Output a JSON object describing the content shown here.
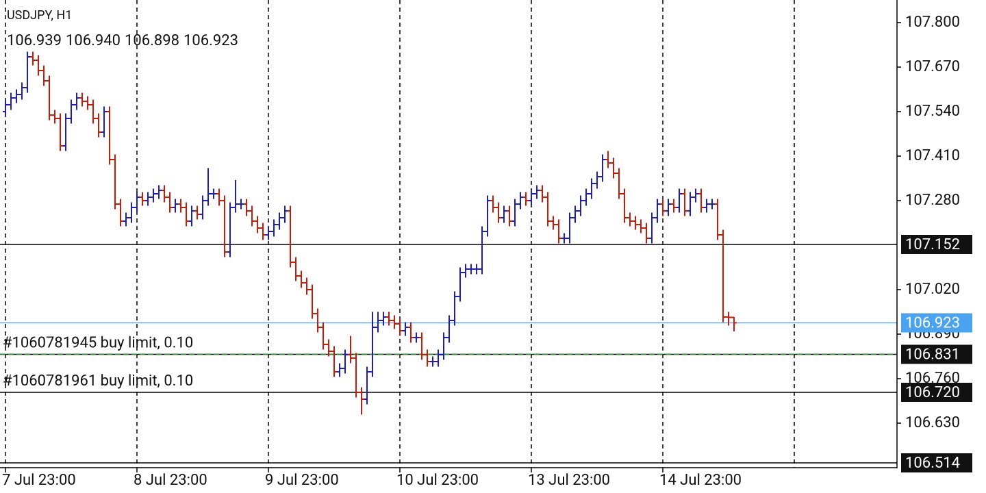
{
  "chart_data": {
    "type": "ohlc",
    "title": "USDJPY, H1",
    "last_bar_labels": [
      "106.939",
      "106.940",
      "106.898",
      "106.923"
    ],
    "categories": [
      "7 Jul 23:00",
      null,
      null,
      null,
      null,
      null,
      null,
      null,
      null,
      null,
      null,
      null,
      null,
      null,
      null,
      null,
      null,
      null,
      null,
      null,
      null,
      null,
      null,
      null,
      "8 Jul 23:00",
      null,
      null,
      null,
      null,
      null,
      null,
      null,
      null,
      null,
      null,
      null,
      null,
      null,
      null,
      null,
      null,
      null,
      null,
      null,
      null,
      null,
      null,
      null,
      "9 Jul 23:00",
      null,
      null,
      null,
      null,
      null,
      null,
      null,
      null,
      null,
      null,
      null,
      null,
      null,
      null,
      null,
      null,
      null,
      null,
      null,
      null,
      null,
      null,
      null,
      "10 Jul 23:00",
      null,
      null,
      null,
      null,
      null,
      null,
      null,
      null,
      null,
      null,
      null,
      null,
      null,
      null,
      null,
      null,
      null,
      null,
      null,
      null,
      null,
      null,
      null,
      "13 Jul 23:00",
      null,
      null,
      null,
      null,
      null,
      null,
      null,
      null,
      null,
      null,
      null,
      null,
      null,
      null,
      null,
      null,
      null,
      null,
      null,
      null,
      null,
      null,
      null,
      "14 Jul 23:00",
      null,
      null,
      null,
      null,
      null,
      null,
      null,
      null,
      null,
      null,
      null,
      null,
      null
    ],
    "open": [
      107.54,
      107.56,
      107.58,
      107.59,
      107.61,
      107.7,
      107.69,
      107.66,
      107.63,
      107.53,
      107.52,
      107.44,
      107.52,
      107.56,
      107.58,
      107.57,
      107.56,
      107.52,
      107.48,
      107.54,
      107.4,
      107.27,
      107.22,
      107.23,
      107.26,
      107.29,
      107.28,
      107.29,
      107.3,
      107.31,
      107.29,
      107.26,
      107.27,
      107.26,
      107.22,
      107.25,
      107.24,
      107.28,
      107.3,
      107.3,
      107.28,
      107.13,
      107.26,
      107.27,
      107.27,
      107.25,
      107.22,
      107.2,
      107.18,
      107.19,
      107.21,
      107.23,
      107.25,
      107.1,
      107.06,
      107.04,
      107.02,
      106.95,
      106.91,
      106.86,
      106.84,
      106.78,
      106.79,
      106.83,
      106.82,
      106.72,
      106.7,
      106.78,
      106.91,
      106.93,
      106.94,
      106.93,
      106.92,
      106.9,
      106.91,
      106.88,
      106.88,
      106.83,
      106.81,
      106.81,
      106.83,
      106.88,
      106.93,
      107.0,
      107.07,
      107.08,
      107.08,
      107.08,
      107.19,
      107.28,
      107.26,
      107.23,
      107.25,
      107.22,
      107.27,
      107.29,
      107.28,
      107.3,
      107.31,
      107.29,
      107.22,
      107.21,
      107.17,
      107.17,
      107.23,
      107.25,
      107.28,
      107.3,
      107.33,
      107.35,
      107.4,
      107.39,
      107.36,
      107.3,
      107.23,
      107.22,
      107.21,
      107.2,
      107.17,
      107.23,
      107.27,
      107.25,
      107.27,
      107.26,
      107.3,
      107.25,
      107.29,
      107.3,
      107.26,
      107.27,
      107.27,
      107.18,
      106.94,
      106.939
    ],
    "high": [
      107.575,
      107.595,
      107.605,
      107.625,
      107.715,
      107.715,
      107.705,
      107.675,
      107.645,
      107.545,
      107.535,
      107.535,
      107.575,
      107.595,
      107.595,
      107.585,
      107.575,
      107.535,
      107.555,
      107.555,
      107.415,
      107.285,
      107.245,
      107.275,
      107.305,
      107.305,
      107.305,
      107.315,
      107.325,
      107.325,
      107.305,
      107.285,
      107.285,
      107.275,
      107.265,
      107.265,
      107.295,
      107.375,
      107.315,
      107.315,
      107.295,
      107.275,
      107.34,
      107.285,
      107.285,
      107.265,
      107.235,
      107.215,
      107.205,
      107.225,
      107.245,
      107.265,
      107.265,
      107.115,
      107.075,
      107.055,
      107.035,
      106.965,
      106.925,
      106.875,
      106.855,
      106.805,
      106.845,
      106.885,
      106.835,
      106.735,
      106.795,
      106.955,
      106.955,
      106.955,
      106.955,
      106.945,
      106.935,
      106.925,
      106.925,
      106.895,
      106.895,
      106.845,
      106.825,
      106.845,
      106.895,
      106.945,
      107.015,
      107.085,
      107.095,
      107.095,
      107.095,
      107.205,
      107.295,
      107.295,
      107.275,
      107.265,
      107.265,
      107.285,
      107.305,
      107.305,
      107.315,
      107.325,
      107.325,
      107.305,
      107.235,
      107.225,
      107.185,
      107.245,
      107.265,
      107.295,
      107.315,
      107.345,
      107.365,
      107.415,
      107.425,
      107.405,
      107.375,
      107.315,
      107.245,
      107.235,
      107.225,
      107.215,
      107.245,
      107.285,
      107.285,
      107.285,
      107.285,
      107.315,
      107.315,
      107.305,
      107.315,
      107.315,
      107.285,
      107.285,
      107.285,
      107.195,
      106.955,
      106.94
    ],
    "low": [
      107.525,
      107.545,
      107.565,
      107.575,
      107.595,
      107.675,
      107.645,
      107.615,
      107.515,
      107.505,
      107.425,
      107.425,
      107.505,
      107.545,
      107.555,
      107.545,
      107.505,
      107.465,
      107.465,
      107.385,
      107.255,
      107.205,
      107.205,
      107.215,
      107.245,
      107.265,
      107.265,
      107.275,
      107.285,
      107.275,
      107.245,
      107.245,
      107.245,
      107.205,
      107.205,
      107.225,
      107.225,
      107.265,
      107.285,
      107.265,
      107.115,
      107.115,
      107.245,
      107.255,
      107.235,
      107.205,
      107.185,
      107.165,
      107.165,
      107.175,
      107.195,
      107.215,
      107.085,
      107.045,
      107.025,
      107.005,
      106.935,
      106.895,
      106.845,
      106.825,
      106.765,
      106.765,
      106.775,
      106.805,
      106.705,
      106.655,
      106.685,
      106.765,
      106.895,
      106.915,
      106.915,
      106.905,
      106.885,
      106.885,
      106.865,
      106.865,
      106.815,
      106.795,
      106.795,
      106.795,
      106.815,
      106.865,
      106.915,
      106.985,
      107.055,
      107.065,
      107.065,
      107.065,
      107.175,
      107.245,
      107.215,
      107.215,
      107.205,
      107.205,
      107.255,
      107.265,
      107.265,
      107.285,
      107.275,
      107.205,
      107.195,
      107.155,
      107.155,
      107.155,
      107.215,
      107.235,
      107.265,
      107.285,
      107.315,
      107.335,
      107.375,
      107.345,
      107.285,
      107.215,
      107.205,
      107.195,
      107.185,
      107.155,
      107.155,
      107.215,
      107.235,
      107.235,
      107.245,
      107.245,
      107.235,
      107.235,
      107.275,
      107.245,
      107.245,
      107.255,
      107.165,
      106.925,
      106.915,
      106.898
    ],
    "close": [
      107.56,
      107.58,
      107.59,
      107.61,
      107.7,
      107.69,
      107.66,
      107.63,
      107.53,
      107.52,
      107.44,
      107.52,
      107.56,
      107.58,
      107.57,
      107.56,
      107.52,
      107.48,
      107.54,
      107.4,
      107.27,
      107.22,
      107.23,
      107.26,
      107.29,
      107.28,
      107.29,
      107.3,
      107.31,
      107.29,
      107.26,
      107.27,
      107.26,
      107.22,
      107.25,
      107.24,
      107.28,
      107.3,
      107.3,
      107.28,
      107.13,
      107.26,
      107.27,
      107.27,
      107.25,
      107.22,
      107.2,
      107.18,
      107.19,
      107.21,
      107.23,
      107.25,
      107.1,
      107.06,
      107.04,
      107.02,
      106.95,
      106.91,
      106.86,
      106.84,
      106.78,
      106.79,
      106.83,
      106.82,
      106.72,
      106.7,
      106.78,
      106.91,
      106.93,
      106.94,
      106.93,
      106.92,
      106.9,
      106.91,
      106.88,
      106.88,
      106.83,
      106.81,
      106.81,
      106.83,
      106.88,
      106.93,
      107.0,
      107.07,
      107.08,
      107.08,
      107.08,
      107.19,
      107.28,
      107.26,
      107.23,
      107.25,
      107.22,
      107.27,
      107.29,
      107.28,
      107.3,
      107.31,
      107.29,
      107.22,
      107.21,
      107.17,
      107.17,
      107.23,
      107.25,
      107.28,
      107.3,
      107.33,
      107.35,
      107.4,
      107.39,
      107.36,
      107.3,
      107.23,
      107.22,
      107.21,
      107.2,
      107.17,
      107.23,
      107.27,
      107.25,
      107.27,
      107.26,
      107.3,
      107.25,
      107.29,
      107.3,
      107.26,
      107.27,
      107.27,
      107.18,
      106.94,
      106.939,
      106.923
    ],
    "up_color": "#1c1cc8",
    "down_color": "#cc1a08",
    "ylim": [
      106.514,
      107.866
    ],
    "yticks": [
      {
        "value": 107.8,
        "label": "107.800"
      },
      {
        "value": 107.67,
        "label": "107.670"
      },
      {
        "value": 107.54,
        "label": "107.540"
      },
      {
        "value": 107.41,
        "label": "107.410"
      },
      {
        "value": 107.28,
        "label": "107.280"
      },
      {
        "value": 107.02,
        "label": "107.020"
      },
      {
        "value": 106.89,
        "label": "106.890"
      },
      {
        "value": 106.76,
        "label": "106.760"
      },
      {
        "value": 106.63,
        "label": "106.630"
      }
    ],
    "grid": true,
    "levels": [
      {
        "value": 107.152,
        "label": "107.152",
        "line_color": "#000000",
        "box_color": "#111111"
      },
      {
        "value": 106.923,
        "label": "106.923",
        "line_color": "#5aaeea",
        "box_color": "#4aa3ee"
      },
      {
        "value": 106.831,
        "label": "106.831",
        "text": "#1060781945 buy limit, 0.10",
        "line_color": "#000000",
        "dash_color": "#1e8c1e",
        "box_color": "#111111"
      },
      {
        "value": 106.72,
        "label": "106.720",
        "text": "#1060781961 buy limit, 0.10",
        "line_color": "#000000",
        "box_color": "#111111"
      },
      {
        "value": 106.514,
        "label": "106.514",
        "line_color": "#000000",
        "box_color": "#111111"
      }
    ]
  }
}
